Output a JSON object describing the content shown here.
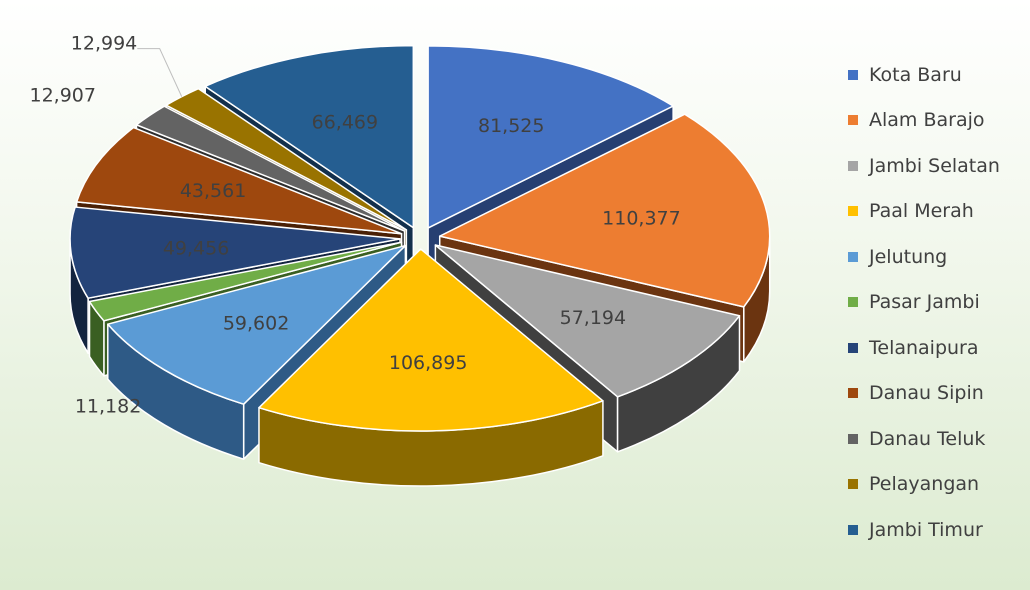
{
  "chart_data": {
    "type": "pie",
    "style": "3d-exploded",
    "title": "",
    "legend_position": "right",
    "slices": [
      {
        "label": "Kota Baru",
        "value": 81525,
        "display": "81,525",
        "color": "#4472C4",
        "side_color": "#263F72"
      },
      {
        "label": "Alam Barajo",
        "value": 110377,
        "display": "110,377",
        "color": "#ED7D31",
        "side_color": "#6B3410"
      },
      {
        "label": "Jambi Selatan",
        "value": 57194,
        "display": "57,194",
        "color": "#A5A5A5",
        "side_color": "#404040"
      },
      {
        "label": "Paal Merah",
        "value": 106895,
        "display": "106,895",
        "color": "#FFC000",
        "side_color": "#8A6A00"
      },
      {
        "label": "Jelutung",
        "value": 59602,
        "display": "59,602",
        "color": "#5B9BD5",
        "side_color": "#2E5A86"
      },
      {
        "label": "Pasar Jambi",
        "value": 11182,
        "display": "11,182",
        "color": "#70AD47",
        "side_color": "#3A5F22"
      },
      {
        "label": "Telanaipura",
        "value": 49456,
        "display": "49,456",
        "color": "#264478",
        "side_color": "#13243F"
      },
      {
        "label": "Danau Sipin",
        "value": 43561,
        "display": "43,561",
        "color": "#9E480E",
        "side_color": "#4A2005"
      },
      {
        "label": "Danau Teluk",
        "value": 12907,
        "display": "12,907",
        "color": "#636363",
        "side_color": "#2E2E2E"
      },
      {
        "label": "Pelayangan",
        "value": 12994,
        "display": "12,994",
        "color": "#997300",
        "side_color": "#4D3A00"
      },
      {
        "label": "Jambi Timur",
        "value": 66469,
        "display": "66,469",
        "color": "#255E91",
        "side_color": "#13304C"
      }
    ]
  }
}
